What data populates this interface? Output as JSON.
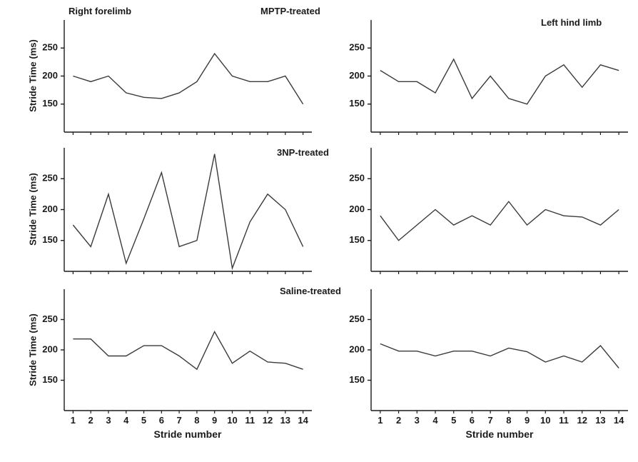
{
  "figure": {
    "column_headers": [
      "Right forelimb",
      "Left hind limb"
    ],
    "row_headers": [
      "MPTP-treated",
      "3NP-treated",
      "Saline-treated"
    ],
    "ylabel": "Stride Time (ms)",
    "xlabel": "Stride number",
    "line_color": "#3a3a3a",
    "axis_color": "#1a1a1a",
    "background": "#ffffff"
  },
  "chart_data": [
    {
      "type": "line",
      "title": "MPTP-treated - Right forelimb",
      "x": [
        1,
        2,
        3,
        4,
        5,
        6,
        7,
        8,
        9,
        10,
        11,
        12,
        13,
        14
      ],
      "values": [
        200,
        190,
        200,
        170,
        162,
        160,
        170,
        190,
        240,
        200,
        190,
        190,
        200,
        150
      ],
      "xlabel": "Stride number",
      "ylabel": "Stride Time (ms)",
      "xlim": [
        0.5,
        14.5
      ],
      "ylim": [
        100,
        300
      ],
      "yticks": [
        150,
        200,
        250
      ],
      "grid": false,
      "legend": "none"
    },
    {
      "type": "line",
      "title": "MPTP-treated - Left hind limb",
      "x": [
        1,
        2,
        3,
        4,
        5,
        6,
        7,
        8,
        9,
        10,
        11,
        12,
        13,
        14
      ],
      "values": [
        210,
        190,
        190,
        170,
        230,
        160,
        200,
        160,
        150,
        200,
        220,
        180,
        220,
        210
      ],
      "xlabel": "Stride number",
      "ylabel": "Stride Time (ms)",
      "xlim": [
        0.5,
        14.5
      ],
      "ylim": [
        100,
        300
      ],
      "yticks": [
        150,
        200,
        250
      ],
      "grid": false,
      "legend": "none"
    },
    {
      "type": "line",
      "title": "3NP-treated - Right forelimb",
      "x": [
        1,
        2,
        3,
        4,
        5,
        6,
        7,
        8,
        9,
        10,
        11,
        12,
        13,
        14
      ],
      "values": [
        175,
        140,
        225,
        113,
        185,
        260,
        140,
        150,
        290,
        105,
        180,
        225,
        200,
        140
      ],
      "xlabel": "Stride number",
      "ylabel": "Stride Time (ms)",
      "xlim": [
        0.5,
        14.5
      ],
      "ylim": [
        100,
        300
      ],
      "yticks": [
        150,
        200,
        250
      ],
      "grid": false,
      "legend": "none"
    },
    {
      "type": "line",
      "title": "3NP-treated - Left hind limb",
      "x": [
        1,
        2,
        3,
        4,
        5,
        6,
        7,
        8,
        9,
        10,
        11,
        12,
        13,
        14
      ],
      "values": [
        190,
        150,
        175,
        200,
        175,
        190,
        175,
        213,
        175,
        200,
        190,
        188,
        175,
        200
      ],
      "xlabel": "Stride number",
      "ylabel": "Stride Time (ms)",
      "xlim": [
        0.5,
        14.5
      ],
      "ylim": [
        100,
        300
      ],
      "yticks": [
        150,
        200,
        250
      ],
      "grid": false,
      "legend": "none"
    },
    {
      "type": "line",
      "title": "Saline-treated - Right forelimb",
      "x": [
        1,
        2,
        3,
        4,
        5,
        6,
        7,
        8,
        9,
        10,
        11,
        12,
        13,
        14
      ],
      "values": [
        218,
        218,
        190,
        190,
        207,
        207,
        190,
        168,
        230,
        178,
        198,
        180,
        178,
        168
      ],
      "xlabel": "Stride number",
      "ylabel": "Stride Time (ms)",
      "xlim": [
        0.5,
        14.5
      ],
      "ylim": [
        100,
        300
      ],
      "yticks": [
        150,
        200,
        250
      ],
      "grid": false,
      "legend": "none"
    },
    {
      "type": "line",
      "title": "Saline-treated - Left hind limb",
      "x": [
        1,
        2,
        3,
        4,
        5,
        6,
        7,
        8,
        9,
        10,
        11,
        12,
        13,
        14
      ],
      "values": [
        210,
        198,
        198,
        190,
        198,
        198,
        190,
        203,
        197,
        180,
        190,
        180,
        207,
        170
      ],
      "xlabel": "Stride number",
      "ylabel": "Stride Time (ms)",
      "xlim": [
        0.5,
        14.5
      ],
      "ylim": [
        100,
        300
      ],
      "yticks": [
        150,
        200,
        250
      ],
      "grid": false,
      "legend": "none"
    }
  ]
}
